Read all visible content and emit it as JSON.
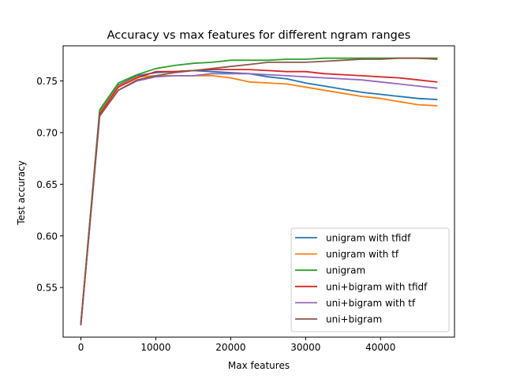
{
  "chart_data": {
    "type": "line",
    "title": "Accuracy vs max features for different ngram ranges",
    "xlabel": "Max features",
    "ylabel": "Test accuracy",
    "xlim": [
      -2375,
      49875
    ],
    "ylim": [
      0.502,
      0.784
    ],
    "xticks": [
      0,
      10000,
      20000,
      30000,
      40000
    ],
    "xtick_labels": [
      "0",
      "10000",
      "20000",
      "30000",
      "40000"
    ],
    "yticks": [
      0.55,
      0.6,
      0.65,
      0.7,
      0.75
    ],
    "ytick_labels": [
      "0.55",
      "0.60",
      "0.65",
      "0.70",
      "0.75"
    ],
    "grid": false,
    "legend_position": "lower right",
    "x": [
      0,
      2500,
      5000,
      7500,
      10000,
      12500,
      15000,
      17500,
      20000,
      22500,
      25000,
      27500,
      30000,
      32500,
      35000,
      37500,
      40000,
      42500,
      45000,
      47500
    ],
    "series": [
      {
        "name": "unigram with tfidf",
        "color": "#1f77b4",
        "values": [
          0.515,
          0.72,
          0.746,
          0.755,
          0.758,
          0.759,
          0.76,
          0.759,
          0.758,
          0.757,
          0.754,
          0.752,
          0.748,
          0.745,
          0.742,
          0.739,
          0.737,
          0.735,
          0.733,
          0.732
        ]
      },
      {
        "name": "unigram with tf",
        "color": "#ff7f0e",
        "values": [
          0.515,
          0.719,
          0.745,
          0.754,
          0.755,
          0.755,
          0.755,
          0.755,
          0.753,
          0.749,
          0.748,
          0.747,
          0.744,
          0.741,
          0.738,
          0.735,
          0.733,
          0.73,
          0.727,
          0.726
        ]
      },
      {
        "name": "unigram",
        "color": "#2ca02c",
        "values": [
          0.516,
          0.722,
          0.748,
          0.756,
          0.762,
          0.765,
          0.767,
          0.768,
          0.77,
          0.77,
          0.77,
          0.771,
          0.771,
          0.772,
          0.772,
          0.772,
          0.772,
          0.772,
          0.772,
          0.772
        ]
      },
      {
        "name": "uni+bigram with tfidf",
        "color": "#d62728",
        "values": [
          0.515,
          0.718,
          0.744,
          0.753,
          0.759,
          0.759,
          0.76,
          0.761,
          0.761,
          0.761,
          0.76,
          0.759,
          0.759,
          0.757,
          0.756,
          0.755,
          0.754,
          0.753,
          0.751,
          0.749
        ]
      },
      {
        "name": "uni+bigram with tf",
        "color": "#9467bd",
        "values": [
          0.515,
          0.716,
          0.741,
          0.75,
          0.754,
          0.755,
          0.755,
          0.757,
          0.757,
          0.757,
          0.756,
          0.755,
          0.754,
          0.753,
          0.752,
          0.751,
          0.749,
          0.747,
          0.745,
          0.743
        ]
      },
      {
        "name": "uni+bigram",
        "color": "#8c564b",
        "values": [
          0.514,
          0.716,
          0.741,
          0.751,
          0.755,
          0.758,
          0.76,
          0.762,
          0.764,
          0.766,
          0.768,
          0.768,
          0.768,
          0.769,
          0.77,
          0.771,
          0.771,
          0.772,
          0.772,
          0.771
        ]
      }
    ]
  }
}
